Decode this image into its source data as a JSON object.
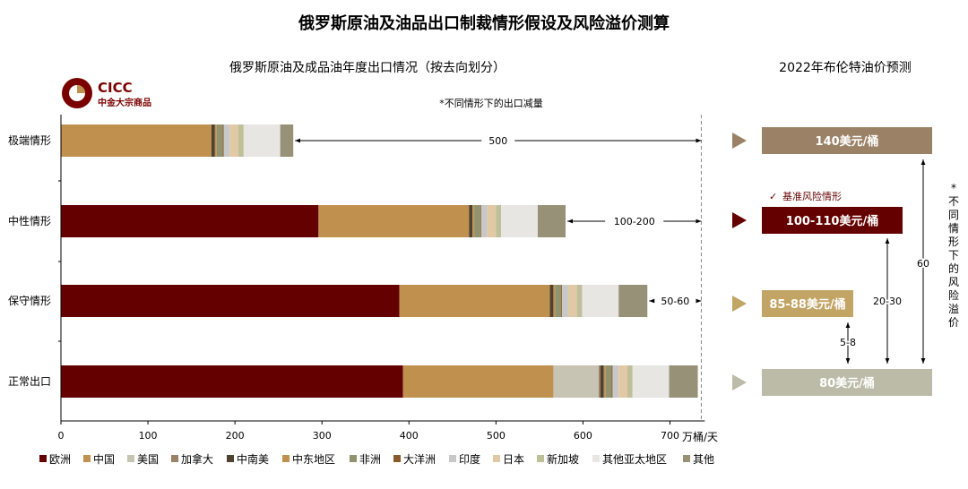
{
  "title": "俄罗斯原油及油品出口制裁情形假设及风险溢价测算",
  "left_title": "俄罗斯原油及成品油年度出口情况（按去向划分）",
  "right_title": "2022年布伦特油价预测",
  "logo": {
    "brand": "CICC",
    "name": "中金大宗商品"
  },
  "note": "*不同情形下的出口减量",
  "side_note": "*不同情形下的风险溢价",
  "benchmark_label": "基准风险情形",
  "chart_data": {
    "type": "bar",
    "orientation": "horizontal",
    "stacked": true,
    "categories": [
      "极端情形",
      "中性情形",
      "保守情形",
      "正常出口"
    ],
    "xlim": [
      0,
      740
    ],
    "xticks": [
      0,
      100,
      200,
      300,
      400,
      500,
      600,
      700
    ],
    "xunit": "万桶/天",
    "grid": false,
    "legend_position": "bottom",
    "series": [
      {
        "name": "欧洲",
        "color": "#650000",
        "values": [
          0,
          296,
          389,
          393
        ]
      },
      {
        "name": "中国",
        "color": "#C0904F",
        "values": [
          173,
          173,
          173,
          173
        ]
      },
      {
        "name": "美国",
        "color": "#C7C4B4",
        "values": [
          0,
          0,
          0,
          52
        ]
      },
      {
        "name": "加拿大",
        "color": "#9B8266",
        "values": [
          0,
          0,
          0,
          2
        ]
      },
      {
        "name": "中南美",
        "color": "#4E4230",
        "values": [
          4,
          4,
          4,
          4
        ]
      },
      {
        "name": "中东地区",
        "color": "#C0904F",
        "values": [
          2,
          2,
          2,
          2
        ]
      },
      {
        "name": "非洲",
        "color": "#90936E",
        "values": [
          7,
          7,
          7,
          7
        ]
      },
      {
        "name": "大洋洲",
        "color": "#8A5A2C",
        "values": [
          1,
          1,
          1,
          1
        ]
      },
      {
        "name": "印度",
        "color": "#C8C8C8",
        "values": [
          7,
          7,
          7,
          7
        ]
      },
      {
        "name": "日本",
        "color": "#E2C9A6",
        "values": [
          10,
          10,
          10,
          10
        ]
      },
      {
        "name": "新加坡",
        "color": "#BFBF9A",
        "values": [
          6,
          6,
          6,
          6
        ]
      },
      {
        "name": "其他亚太地区",
        "color": "#E7E6E2",
        "values": [
          42,
          42,
          42,
          42
        ]
      },
      {
        "name": "其他",
        "color": "#979277",
        "values": [
          15,
          32,
          33,
          33
        ]
      }
    ],
    "reductions": [
      "500",
      "100-200",
      "50-60",
      ""
    ],
    "reference_line": 736
  },
  "price_forecast": [
    {
      "scenario": "极端情形",
      "label": "140美元/桶",
      "value": 140,
      "color": "#9B8266"
    },
    {
      "scenario": "中性情形",
      "label": "100-110美元/桶",
      "value": 105,
      "color": "#650000"
    },
    {
      "scenario": "保守情形",
      "label": "85-88美元/桶",
      "value": 86.5,
      "color": "#C2A465"
    },
    {
      "scenario": "正常出口",
      "label": "80美元/桶",
      "value": 80,
      "color": "#BCBBA8"
    }
  ],
  "premiums": [
    "5-8",
    "20-30",
    "60"
  ]
}
